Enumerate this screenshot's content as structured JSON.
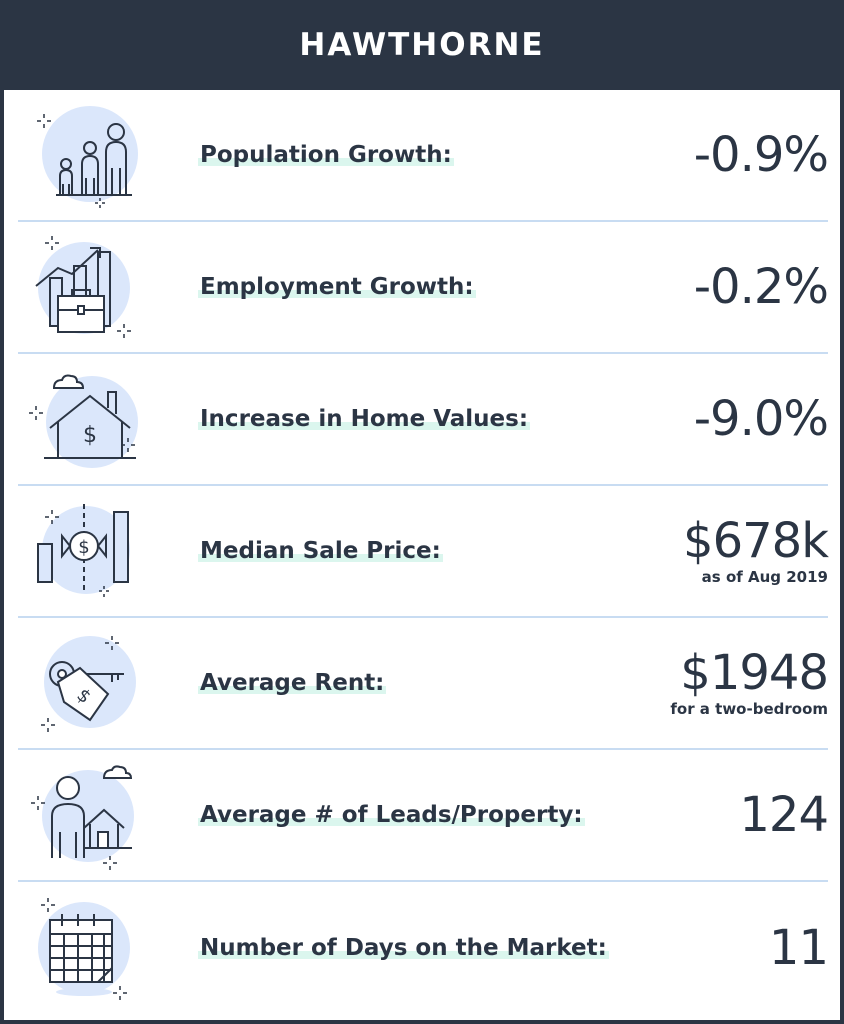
{
  "title": "HAWTHORNE",
  "colors": {
    "header": "#2b3544",
    "highlight": "#dbf6ee",
    "divider": "#c8dcf2",
    "icon_fill": "#dbe7fb"
  },
  "rows": [
    {
      "icon": "population-icon",
      "label": "Population Growth:",
      "value": "-0.9%",
      "sub": ""
    },
    {
      "icon": "employment-icon",
      "label": "Employment Growth:",
      "value": "-0.2%",
      "sub": ""
    },
    {
      "icon": "house-dollar-icon",
      "label": "Increase in Home Values:",
      "value": "-9.0%",
      "sub": ""
    },
    {
      "icon": "sale-price-icon",
      "label": "Median Sale Price:",
      "value": "$678k",
      "sub": "as of Aug 2019"
    },
    {
      "icon": "key-tag-icon",
      "label": "Average Rent:",
      "value": "$1948",
      "sub": "for a two-bedroom"
    },
    {
      "icon": "person-house-icon",
      "label": "Average # of Leads/Property:",
      "value": "124",
      "sub": ""
    },
    {
      "icon": "calendar-icon",
      "label": "Number of Days on the Market:",
      "value": "11",
      "sub": ""
    }
  ]
}
